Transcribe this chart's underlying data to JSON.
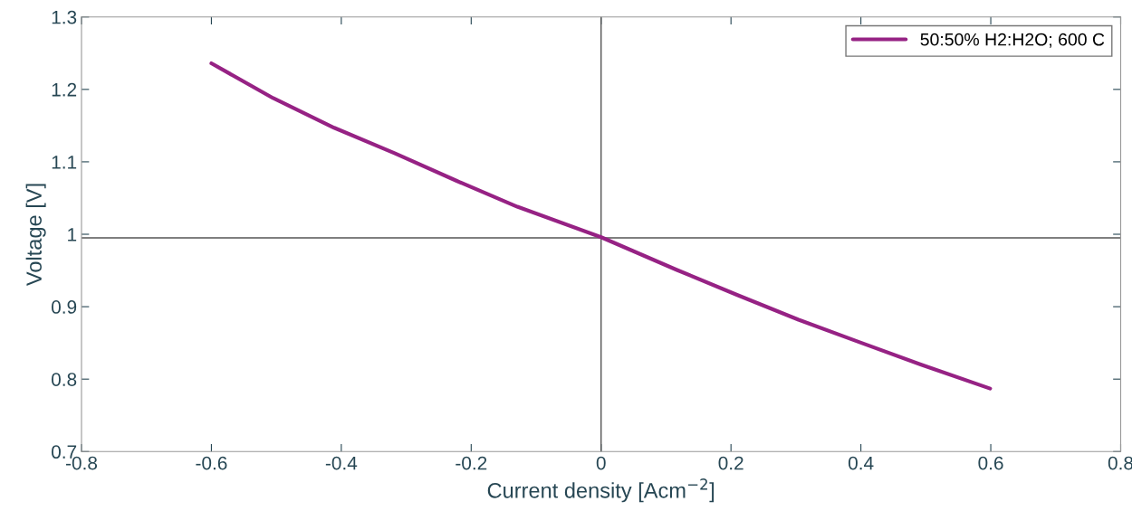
{
  "chart_data": {
    "type": "line",
    "xlabel": "Current density [Acm$^{−2}$]",
    "ylabel": "Voltage [V]",
    "xlim": [
      -0.8,
      0.8
    ],
    "xticks": [
      -0.8,
      -0.6,
      -0.4,
      -0.2,
      0,
      0.2,
      0.4,
      0.6,
      0.8
    ],
    "ylim": [
      0.7,
      1.3
    ],
    "yticks": [
      0.7,
      0.8,
      0.9,
      1,
      1.1,
      1.2,
      1.3
    ],
    "grid": false,
    "legend": "top right",
    "marker": "none",
    "line_style": "solid",
    "ref_lines": [
      {
        "axis": "x",
        "value": 0,
        "color": "#555555"
      },
      {
        "axis": "y",
        "value": 0.995,
        "color": "#555555"
      }
    ],
    "series": [
      {
        "name": "50:50% H2:H2O; 600 C",
        "color": "#962284",
        "x": [
          -0.6,
          -0.505,
          -0.411,
          -0.318,
          -0.223,
          -0.129,
          0,
          0.116,
          0.21,
          0.304,
          0.398,
          0.493,
          0.599
        ],
        "values": [
          1.236,
          1.188,
          1.147,
          1.112,
          1.074,
          1.038,
          0.996,
          0.951,
          0.916,
          0.882,
          0.851,
          0.82,
          0.787
        ]
      }
    ]
  }
}
